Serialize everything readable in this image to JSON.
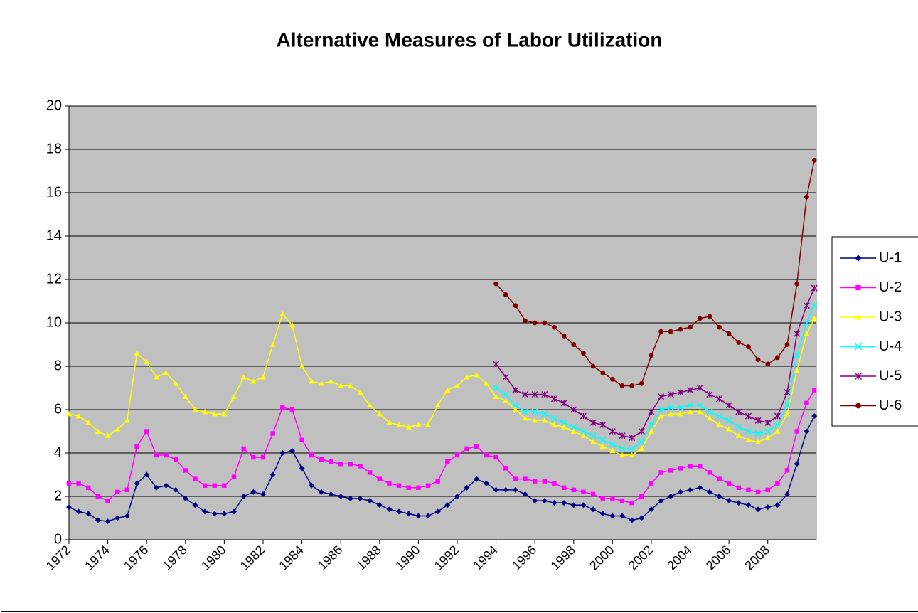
{
  "chart_data": {
    "type": "line",
    "title": "Alternative Measures of Labor Utilization",
    "x": [
      1972,
      1972.5,
      1973,
      1973.5,
      1974,
      1974.5,
      1975,
      1975.5,
      1976,
      1976.5,
      1977,
      1977.5,
      1978,
      1978.5,
      1979,
      1979.5,
      1980,
      1980.5,
      1981,
      1981.5,
      1982,
      1982.5,
      1983,
      1983.5,
      1984,
      1984.5,
      1985,
      1985.5,
      1986,
      1986.5,
      1987,
      1987.5,
      1988,
      1988.5,
      1989,
      1989.5,
      1990,
      1990.5,
      1991,
      1991.5,
      1992,
      1992.5,
      1993,
      1993.5,
      1994,
      1994.5,
      1995,
      1995.5,
      1996,
      1996.5,
      1997,
      1997.5,
      1998,
      1998.5,
      1999,
      1999.5,
      2000,
      2000.5,
      2001,
      2001.5,
      2002,
      2002.5,
      2003,
      2003.5,
      2004,
      2004.5,
      2005,
      2005.5,
      2006,
      2006.5,
      2007,
      2007.5,
      2008,
      2008.5,
      2009,
      2009.5,
      2010,
      2010.4
    ],
    "xlim": [
      1972,
      2010.5
    ],
    "xticks": [
      1972,
      1974,
      1976,
      1978,
      1980,
      1982,
      1984,
      1986,
      1988,
      1990,
      1992,
      1994,
      1996,
      1998,
      2000,
      2002,
      2004,
      2006,
      2008
    ],
    "ylim": [
      0,
      20
    ],
    "yticks": [
      0,
      2,
      4,
      6,
      8,
      10,
      12,
      14,
      16,
      18,
      20
    ],
    "grid": true,
    "legend": "right",
    "series": [
      {
        "name": "U-1",
        "color": "#000080",
        "marker": "diamond",
        "values": [
          1.5,
          1.3,
          1.2,
          0.9,
          0.85,
          1.0,
          1.1,
          2.6,
          3.0,
          2.4,
          2.5,
          2.3,
          1.9,
          1.6,
          1.3,
          1.2,
          1.2,
          1.3,
          2.0,
          2.2,
          2.1,
          3.0,
          4.0,
          4.1,
          3.3,
          2.5,
          2.2,
          2.1,
          2.0,
          1.9,
          1.9,
          1.8,
          1.6,
          1.4,
          1.3,
          1.2,
          1.1,
          1.1,
          1.3,
          1.6,
          2.0,
          2.4,
          2.8,
          2.6,
          2.3,
          2.3,
          2.3,
          2.1,
          1.8,
          1.8,
          1.7,
          1.7,
          1.6,
          1.6,
          1.4,
          1.2,
          1.1,
          1.1,
          0.9,
          1.0,
          1.4,
          1.8,
          2.0,
          2.2,
          2.3,
          2.4,
          2.2,
          2.0,
          1.8,
          1.7,
          1.6,
          1.4,
          1.5,
          1.6,
          2.1,
          3.5,
          5.0,
          5.7
        ]
      },
      {
        "name": "U-2",
        "color": "#FF00FF",
        "marker": "square",
        "values": [
          2.6,
          2.6,
          2.4,
          2.0,
          1.8,
          2.2,
          2.3,
          4.3,
          5.0,
          3.9,
          3.9,
          3.7,
          3.2,
          2.8,
          2.5,
          2.5,
          2.5,
          2.9,
          4.2,
          3.8,
          3.8,
          4.9,
          6.1,
          6.0,
          4.6,
          3.9,
          3.7,
          3.6,
          3.5,
          3.5,
          3.4,
          3.1,
          2.8,
          2.6,
          2.5,
          2.4,
          2.4,
          2.5,
          2.7,
          3.6,
          3.9,
          4.2,
          4.3,
          3.9,
          3.8,
          3.3,
          2.8,
          2.8,
          2.7,
          2.7,
          2.6,
          2.4,
          2.3,
          2.2,
          2.1,
          1.9,
          1.9,
          1.8,
          1.7,
          2.0,
          2.6,
          3.1,
          3.2,
          3.3,
          3.4,
          3.4,
          3.1,
          2.8,
          2.6,
          2.4,
          2.3,
          2.2,
          2.3,
          2.6,
          3.2,
          5.0,
          6.3,
          6.9
        ]
      },
      {
        "name": "U-3",
        "color": "#FFFF00",
        "marker": "triangle",
        "values": [
          5.8,
          5.7,
          5.4,
          5.0,
          4.8,
          5.1,
          5.5,
          8.6,
          8.2,
          7.5,
          7.7,
          7.2,
          6.6,
          6.0,
          5.9,
          5.8,
          5.8,
          6.6,
          7.5,
          7.3,
          7.5,
          9.0,
          10.4,
          9.9,
          8.0,
          7.3,
          7.2,
          7.3,
          7.1,
          7.1,
          6.8,
          6.2,
          5.8,
          5.4,
          5.3,
          5.2,
          5.3,
          5.3,
          6.2,
          6.9,
          7.1,
          7.5,
          7.6,
          7.2,
          6.6,
          6.4,
          6.0,
          5.6,
          5.5,
          5.5,
          5.3,
          5.2,
          5.0,
          4.8,
          4.5,
          4.3,
          4.1,
          3.9,
          3.9,
          4.2,
          5.0,
          5.7,
          5.8,
          5.8,
          5.9,
          5.9,
          5.6,
          5.3,
          5.1,
          4.8,
          4.6,
          4.5,
          4.7,
          5.0,
          5.8,
          7.8,
          9.5,
          10.2
        ]
      },
      {
        "name": "U-4",
        "color": "#00FFFF",
        "marker": "x",
        "values": [
          null,
          null,
          null,
          null,
          null,
          null,
          null,
          null,
          null,
          null,
          null,
          null,
          null,
          null,
          null,
          null,
          null,
          null,
          null,
          null,
          null,
          null,
          null,
          null,
          null,
          null,
          null,
          null,
          null,
          null,
          null,
          null,
          null,
          null,
          null,
          null,
          null,
          null,
          null,
          null,
          null,
          null,
          null,
          null,
          7.0,
          6.7,
          6.2,
          5.9,
          5.9,
          5.8,
          5.6,
          5.4,
          5.2,
          5.0,
          4.8,
          4.6,
          4.4,
          4.2,
          4.2,
          4.5,
          5.3,
          6.0,
          6.1,
          6.1,
          6.2,
          6.2,
          5.9,
          5.7,
          5.5,
          5.2,
          5.0,
          4.9,
          5.0,
          5.3,
          6.2,
          8.5,
          10.0,
          10.8
        ]
      },
      {
        "name": "U-5",
        "color": "#800080",
        "marker": "star",
        "values": [
          null,
          null,
          null,
          null,
          null,
          null,
          null,
          null,
          null,
          null,
          null,
          null,
          null,
          null,
          null,
          null,
          null,
          null,
          null,
          null,
          null,
          null,
          null,
          null,
          null,
          null,
          null,
          null,
          null,
          null,
          null,
          null,
          null,
          null,
          null,
          null,
          null,
          null,
          null,
          null,
          null,
          null,
          null,
          null,
          8.1,
          7.5,
          6.9,
          6.7,
          6.7,
          6.7,
          6.5,
          6.3,
          6.0,
          5.7,
          5.4,
          5.3,
          5.0,
          4.8,
          4.7,
          5.0,
          5.9,
          6.6,
          6.7,
          6.8,
          6.9,
          7.0,
          6.7,
          6.5,
          6.2,
          5.9,
          5.7,
          5.5,
          5.4,
          5.7,
          6.8,
          9.5,
          10.8,
          11.6
        ]
      },
      {
        "name": "U-6",
        "color": "#800000",
        "marker": "circle",
        "values": [
          null,
          null,
          null,
          null,
          null,
          null,
          null,
          null,
          null,
          null,
          null,
          null,
          null,
          null,
          null,
          null,
          null,
          null,
          null,
          null,
          null,
          null,
          null,
          null,
          null,
          null,
          null,
          null,
          null,
          null,
          null,
          null,
          null,
          null,
          null,
          null,
          null,
          null,
          null,
          null,
          null,
          null,
          null,
          null,
          11.8,
          11.3,
          10.8,
          10.1,
          10.0,
          10.0,
          9.8,
          9.4,
          9.0,
          8.6,
          8.0,
          7.7,
          7.4,
          7.1,
          7.1,
          7.2,
          8.5,
          9.6,
          9.6,
          9.7,
          9.8,
          10.2,
          10.3,
          9.8,
          9.5,
          9.1,
          8.9,
          8.3,
          8.1,
          8.4,
          9.0,
          11.8,
          15.8,
          17.5
        ]
      }
    ]
  }
}
